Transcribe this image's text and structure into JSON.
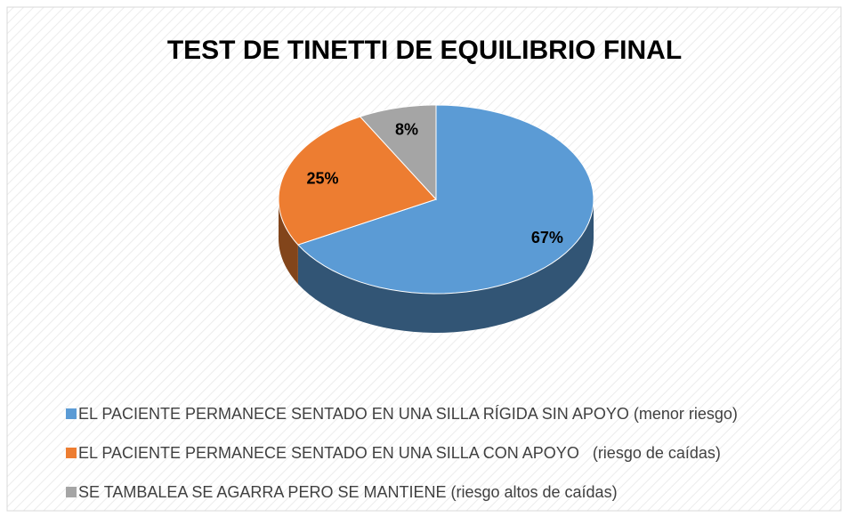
{
  "chart_data": {
    "type": "pie",
    "title": "TEST DE TINETTI DE EQUILIBRIO FINAL",
    "categories": [
      "EL PACIENTE PERMANECE SENTADO EN UNA SILLA RÍGIDA SIN APOYO (menor riesgo)",
      "EL PACIENTE PERMANECE SENTADO EN UNA SILLA CON APOYO   (riesgo de caídas)",
      "SE TAMBALEA SE AGARRA PERO SE MANTIENE (riesgo altos de caídas)"
    ],
    "values": [
      67,
      25,
      8
    ],
    "value_labels": [
      "67%",
      "25%",
      "8%"
    ],
    "colors": [
      "#5b9bd5",
      "#ed7d31",
      "#a5a5a5"
    ],
    "legend": "bottom"
  }
}
